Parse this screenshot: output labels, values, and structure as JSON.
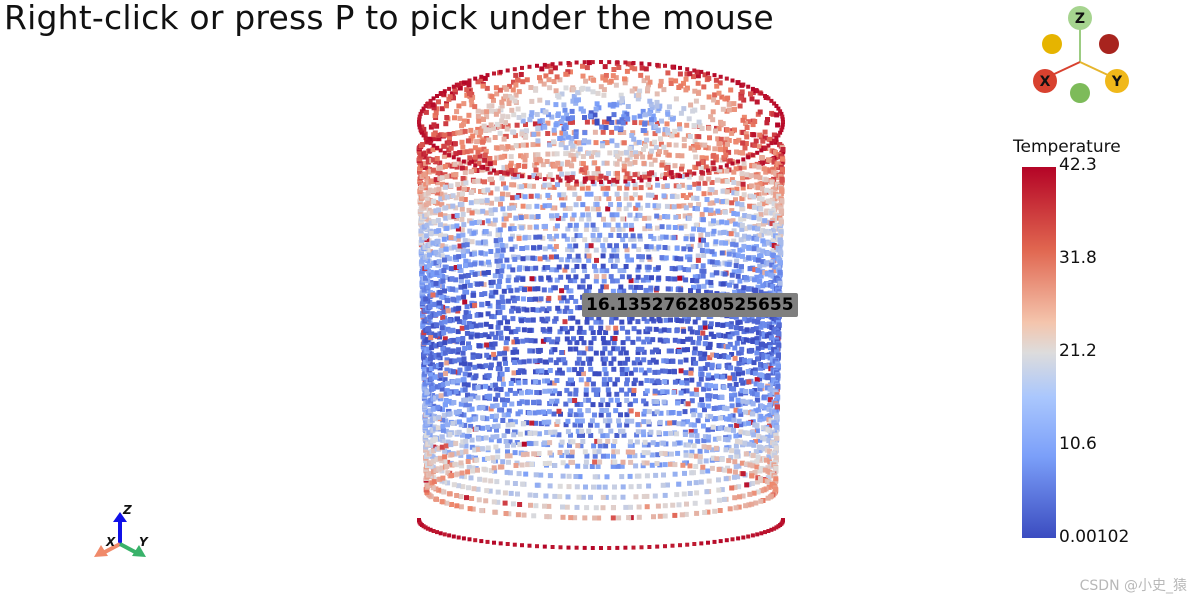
{
  "title": "Right-click or press P to pick under the mouse",
  "picked_value": "16.135276280525655",
  "legend": {
    "title": "Temperature",
    "ticks": [
      "42.3",
      "31.8",
      "21.2",
      "10.6",
      "0.00102"
    ]
  },
  "orientation_widget": {
    "z_label": "Z",
    "x_label": "X",
    "y_label": "Y"
  },
  "small_axes": {
    "z_label": "Z",
    "x_label": "X",
    "y_label": "Y"
  },
  "watermark": "CSDN @小史_猿",
  "colors": {
    "low": "#3b4cc0",
    "mid": "#dddcdc",
    "high": "#b40426"
  }
}
